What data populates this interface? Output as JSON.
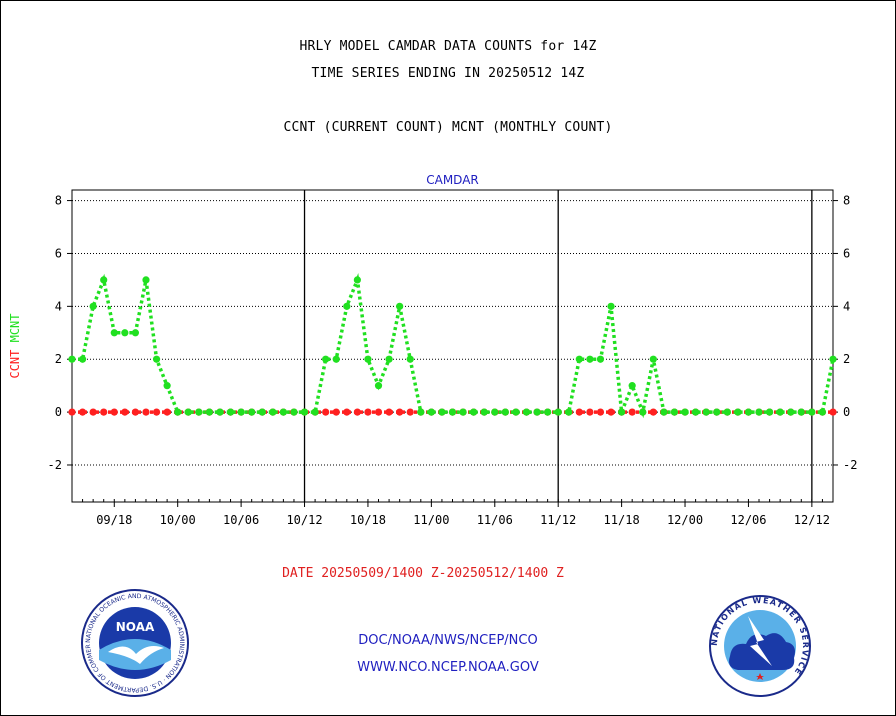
{
  "titles": {
    "line1": "HRLY MODEL CAMDAR DATA COUNTS for 14Z",
    "line2": "TIME SERIES ENDING IN 20250512 14Z",
    "line3": "CCNT (CURRENT COUNT) MCNT (MONTHLY COUNT)"
  },
  "footer": {
    "date_range": "DATE 20250509/1400 Z-20250512/1400 Z",
    "link1": "DOC/NOAA/NWS/NCEP/NCO",
    "link2": "WWW.NCO.NCEP.NOAA.GOV"
  },
  "logos": {
    "left": {
      "icon": "noaa-logo",
      "text": "NOAA",
      "ring_text": "NATIONAL OCEANIC AND ATMOSPHERIC ADMINISTRATION · U.S. DEPARTMENT OF COMMERCE"
    },
    "right": {
      "icon": "nws-logo",
      "ring_text": "NATIONAL WEATHER SERVICE"
    }
  },
  "chart_data": {
    "type": "line",
    "title": "CAMDAR",
    "ylabel_ccnt": "CCNT",
    "ylabel_mcnt": "MCNT",
    "ylim": [
      -3.4,
      8.4
    ],
    "yticks": [
      -2,
      0,
      2,
      4,
      6,
      8
    ],
    "ytick_labels": [
      "-2",
      "0",
      "2",
      "4",
      "6",
      "8"
    ],
    "xlim": [
      0,
      72
    ],
    "x_tick_positions": [
      4,
      10,
      16,
      22,
      28,
      34,
      40,
      46,
      52,
      58,
      64,
      70
    ],
    "x_tick_labels": [
      "09/18",
      "10/00",
      "10/06",
      "10/12",
      "10/18",
      "11/00",
      "11/06",
      "11/12",
      "11/18",
      "12/00",
      "12/06",
      "12/12"
    ],
    "day_boundaries": [
      22,
      46,
      70
    ],
    "grid": true,
    "colors": {
      "ccnt": "#ff2020",
      "mcnt": "#20e020",
      "title": "#2020c0",
      "axis": "#000000"
    },
    "series": [
      {
        "name": "CCNT",
        "x": [
          0,
          1,
          2,
          3,
          4,
          5,
          6,
          7,
          8,
          9,
          10,
          11,
          12,
          13,
          14,
          15,
          16,
          17,
          18,
          19,
          20,
          21,
          22,
          23,
          24,
          25,
          26,
          27,
          28,
          29,
          30,
          31,
          32,
          33,
          34,
          35,
          36,
          37,
          38,
          39,
          40,
          41,
          42,
          43,
          44,
          45,
          46,
          47,
          48,
          49,
          50,
          51,
          52,
          53,
          54,
          55,
          56,
          57,
          58,
          59,
          60,
          61,
          62,
          63,
          64,
          65,
          66,
          67,
          68,
          69,
          70,
          71,
          72
        ],
        "y": [
          0,
          0,
          0,
          0,
          0,
          0,
          0,
          0,
          0,
          0,
          0,
          0,
          0,
          0,
          0,
          0,
          0,
          0,
          0,
          0,
          0,
          0,
          0,
          0,
          0,
          0,
          0,
          0,
          0,
          0,
          0,
          0,
          0,
          0,
          0,
          0,
          0,
          0,
          0,
          0,
          0,
          0,
          0,
          0,
          0,
          0,
          0,
          0,
          0,
          0,
          0,
          0,
          0,
          0,
          0,
          0,
          0,
          0,
          0,
          0,
          0,
          0,
          0,
          0,
          0,
          0,
          0,
          0,
          0,
          0,
          0,
          0,
          0
        ]
      },
      {
        "name": "MCNT",
        "x": [
          0,
          1,
          2,
          3,
          4,
          5,
          6,
          7,
          8,
          9,
          10,
          11,
          12,
          13,
          14,
          15,
          16,
          17,
          18,
          19,
          20,
          21,
          22,
          23,
          24,
          25,
          26,
          27,
          28,
          29,
          30,
          31,
          32,
          33,
          34,
          35,
          36,
          37,
          38,
          39,
          40,
          41,
          42,
          43,
          44,
          45,
          46,
          47,
          48,
          49,
          50,
          51,
          52,
          53,
          54,
          55,
          56,
          57,
          58,
          59,
          60,
          61,
          62,
          63,
          64,
          65,
          66,
          67,
          68,
          69,
          70,
          71,
          72
        ],
        "y": [
          2,
          2,
          4,
          5,
          3,
          3,
          3,
          5,
          2,
          1,
          0,
          0,
          0,
          0,
          0,
          0,
          0,
          0,
          0,
          0,
          0,
          0,
          0,
          0,
          2,
          2,
          4,
          5,
          2,
          1,
          2,
          4,
          2,
          0,
          0,
          0,
          0,
          0,
          0,
          0,
          0,
          0,
          0,
          0,
          0,
          0,
          0,
          0,
          2,
          2,
          2,
          4,
          0,
          1,
          0,
          2,
          0,
          0,
          0,
          0,
          0,
          0,
          0,
          0,
          0,
          0,
          0,
          0,
          0,
          0,
          0,
          0,
          2
        ]
      }
    ]
  }
}
